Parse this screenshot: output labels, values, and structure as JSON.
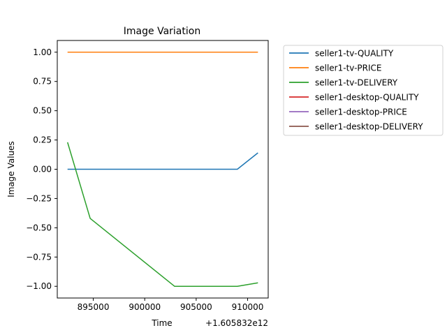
{
  "chart_data": {
    "type": "line",
    "title": "Image Variation",
    "xlabel": "Time",
    "ylabel": "Image Values",
    "x_offset_label": "+1.605832e12",
    "xlim": [
      891500,
      912000
    ],
    "ylim": [
      -1.1,
      1.1
    ],
    "x_ticks": [
      895000,
      900000,
      905000,
      910000
    ],
    "x_tick_labels": [
      "895000",
      "900000",
      "905000",
      "910000"
    ],
    "y_ticks": [
      1.0,
      0.75,
      0.5,
      0.25,
      0.0,
      -0.25,
      -0.5,
      -0.75,
      -1.0
    ],
    "y_tick_labels": [
      "1.00",
      "0.75",
      "0.50",
      "0.25",
      "0.00",
      "−0.25",
      "−0.50",
      "−0.75",
      "−1.00"
    ],
    "grid": false,
    "legend_position": "outside-right",
    "series": [
      {
        "name": "seller1-tv-QUALITY",
        "color": "#1f77b4",
        "x": [
          892500,
          909000,
          911000
        ],
        "y": [
          0.0,
          0.0,
          0.14
        ]
      },
      {
        "name": "seller1-tv-PRICE",
        "color": "#ff7f0e",
        "x": [
          892500,
          911000
        ],
        "y": [
          1.0,
          1.0
        ]
      },
      {
        "name": "seller1-tv-DELIVERY",
        "color": "#2ca02c",
        "x": [
          892500,
          894700,
          902900,
          909000,
          911000
        ],
        "y": [
          0.23,
          -0.42,
          -1.0,
          -1.0,
          -0.97
        ]
      },
      {
        "name": "seller1-desktop-QUALITY",
        "color": "#d62728",
        "x": [],
        "y": []
      },
      {
        "name": "seller1-desktop-PRICE",
        "color": "#9467bd",
        "x": [],
        "y": []
      },
      {
        "name": "seller1-desktop-DELIVERY",
        "color": "#8c564b",
        "x": [],
        "y": []
      }
    ]
  }
}
